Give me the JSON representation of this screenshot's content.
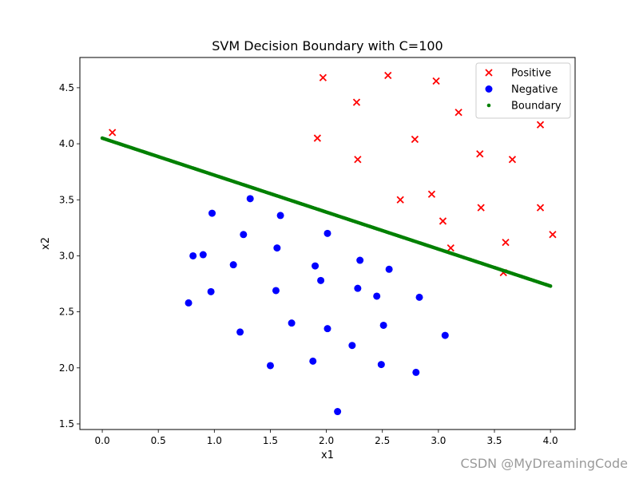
{
  "watermark": "CSDN @MyDreamingCode",
  "chart_data": {
    "type": "scatter",
    "title": "SVM Decision Boundary with C=100",
    "xlabel": "x1",
    "ylabel": "x2",
    "xlim": [
      -0.2,
      4.22
    ],
    "ylim": [
      1.45,
      4.77
    ],
    "xticks": [
      0.0,
      0.5,
      1.0,
      1.5,
      2.0,
      2.5,
      3.0,
      3.5,
      4.0
    ],
    "xtick_labels": [
      "0.0",
      "0.5",
      "1.0",
      "1.5",
      "2.0",
      "2.5",
      "3.0",
      "3.5",
      "4.0"
    ],
    "yticks": [
      1.5,
      2.0,
      2.5,
      3.0,
      3.5,
      4.0,
      4.5
    ],
    "ytick_labels": [
      "1.5",
      "2.0",
      "2.5",
      "3.0",
      "3.5",
      "4.0",
      "4.5"
    ],
    "grid": false,
    "legend_position": "top-right",
    "series": [
      {
        "name": "Positive",
        "marker": "x",
        "color": "#ff0000",
        "points": [
          [
            0.09,
            4.1
          ],
          [
            1.97,
            4.59
          ],
          [
            2.55,
            4.61
          ],
          [
            2.98,
            4.56
          ],
          [
            2.27,
            4.37
          ],
          [
            3.18,
            4.28
          ],
          [
            3.91,
            4.17
          ],
          [
            1.92,
            4.05
          ],
          [
            2.79,
            4.04
          ],
          [
            3.37,
            3.91
          ],
          [
            2.28,
            3.86
          ],
          [
            3.66,
            3.86
          ],
          [
            2.94,
            3.55
          ],
          [
            2.66,
            3.5
          ],
          [
            3.38,
            3.43
          ],
          [
            3.91,
            3.43
          ],
          [
            3.04,
            3.31
          ],
          [
            4.02,
            3.19
          ],
          [
            3.6,
            3.12
          ],
          [
            3.11,
            3.07
          ],
          [
            3.58,
            2.85
          ]
        ]
      },
      {
        "name": "Negative",
        "marker": "o",
        "color": "#0000ff",
        "points": [
          [
            1.32,
            3.51
          ],
          [
            0.98,
            3.38
          ],
          [
            1.59,
            3.36
          ],
          [
            1.26,
            3.19
          ],
          [
            2.01,
            3.2
          ],
          [
            1.56,
            3.07
          ],
          [
            0.9,
            3.01
          ],
          [
            0.81,
            3.0
          ],
          [
            2.3,
            2.96
          ],
          [
            1.17,
            2.92
          ],
          [
            1.9,
            2.91
          ],
          [
            2.56,
            2.88
          ],
          [
            1.95,
            2.78
          ],
          [
            2.28,
            2.71
          ],
          [
            0.97,
            2.68
          ],
          [
            1.55,
            2.69
          ],
          [
            2.45,
            2.64
          ],
          [
            2.83,
            2.63
          ],
          [
            0.77,
            2.58
          ],
          [
            1.69,
            2.4
          ],
          [
            2.51,
            2.38
          ],
          [
            1.23,
            2.32
          ],
          [
            2.01,
            2.35
          ],
          [
            3.06,
            2.29
          ],
          [
            2.23,
            2.2
          ],
          [
            1.88,
            2.06
          ],
          [
            1.5,
            2.02
          ],
          [
            2.49,
            2.03
          ],
          [
            2.8,
            1.96
          ],
          [
            2.1,
            1.61
          ]
        ]
      },
      {
        "name": "Boundary",
        "marker": "dot",
        "color": "#008000",
        "points": [
          [
            0.0,
            4.05
          ],
          [
            4.0,
            2.73
          ]
        ]
      }
    ]
  }
}
